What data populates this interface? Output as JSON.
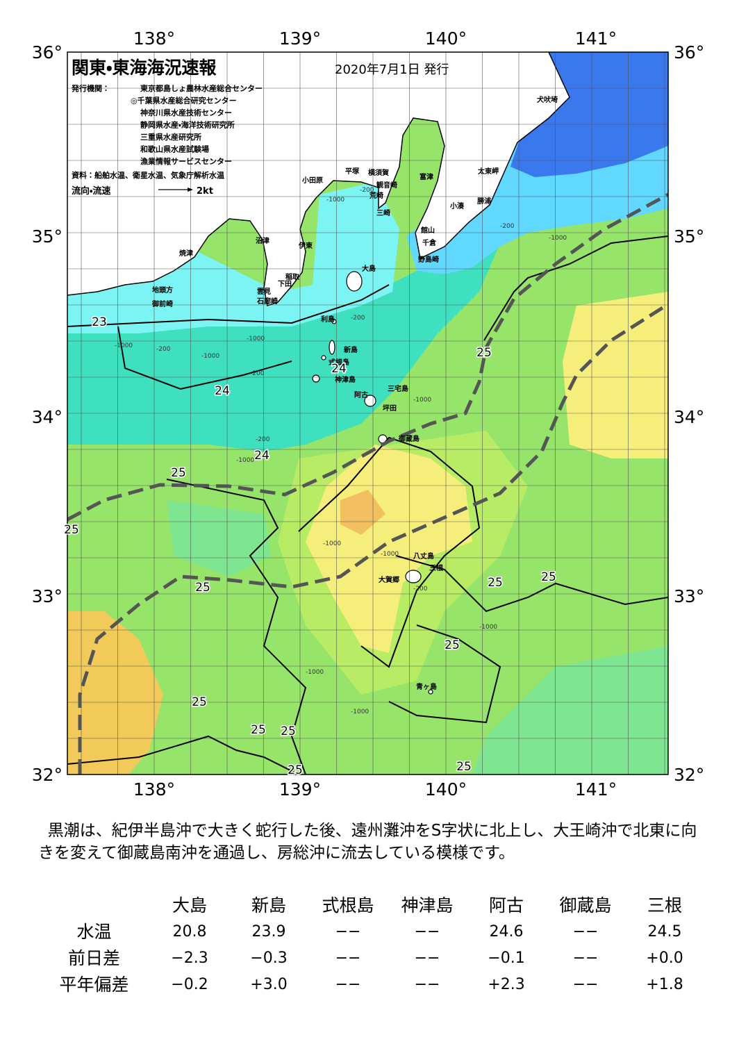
{
  "header": {
    "title": "関東・東海海況速報",
    "date": "2020年7月1日 発行"
  },
  "issuers": {
    "label": "発行機関：",
    "list": [
      "東京都島しょ農林水産総合センター",
      "◎千葉県水産総合研究センター",
      "神奈川県水産技術センター",
      "静岡県水産・海洋技術研究所",
      "三重県水産研究所",
      "和歌山県水産試験場",
      "漁業情報サービスセンター"
    ]
  },
  "source": "資料：船舶水温、衛星水温、気象庁解析水温",
  "legend": {
    "label": "流向・流速",
    "scale": "2kt"
  },
  "map": {
    "lon_labels": [
      "138°",
      "139°",
      "140°",
      "141°"
    ],
    "lat_labels": [
      "36°",
      "35°",
      "34°",
      "33°",
      "32°"
    ],
    "places": [
      "犬吠埼",
      "太東岬",
      "勝浦",
      "小湊",
      "富津",
      "横須賀",
      "観音崎",
      "平塚",
      "荒崎",
      "小田原",
      "三崎",
      "館山",
      "千倉",
      "野島崎",
      "沼津",
      "伊東",
      "焼津",
      "大島",
      "稲取",
      "下田",
      "雲見",
      "石廊崎",
      "地頭方",
      "御前崎",
      "利島",
      "新島",
      "式根島",
      "神津島",
      "三宅島",
      "阿古",
      "坪田",
      "御蔵島",
      "八丈島",
      "三根",
      "大賀郷",
      "青ヶ島"
    ],
    "contour_labels": [
      "23",
      "24",
      "24",
      "24",
      "25",
      "25",
      "25",
      "25",
      "25",
      "25",
      "25",
      "25",
      "25",
      "25",
      "25",
      "25"
    ],
    "depth_labels": [
      "-1000",
      "-200",
      "-200",
      "-1000",
      "-200",
      "-1000",
      "-1000",
      "-1000",
      "-200",
      "-200",
      "-1000",
      "-200",
      "-1000",
      "-1000",
      "-1000",
      "-200",
      "-1000",
      "-1000",
      "-1000"
    ]
  },
  "summary": "黒潮は、紀伊半島沖で大きく蛇行した後、遠州灘沖をS字状に北上し、大王崎沖で北東に向きを変えて御蔵島南沖を通過し、房総沖に流去している模様です。",
  "table": {
    "columns": [
      "大島",
      "新島",
      "式根島",
      "神津島",
      "阿古",
      "御蔵島",
      "三根"
    ],
    "rows": [
      {
        "label": "水温",
        "values": [
          "20.8",
          "23.9",
          "−−",
          "−−",
          "24.6",
          "−−",
          "24.5"
        ]
      },
      {
        "label": "前日差",
        "values": [
          "−2.3",
          "−0.3",
          "−−",
          "−−",
          "−0.1",
          "−−",
          "+0.0"
        ]
      },
      {
        "label": "平年偏差",
        "values": [
          "−0.2",
          "+3.0",
          "−−",
          "−−",
          "+2.3",
          "−−",
          "+1.8"
        ]
      }
    ]
  }
}
